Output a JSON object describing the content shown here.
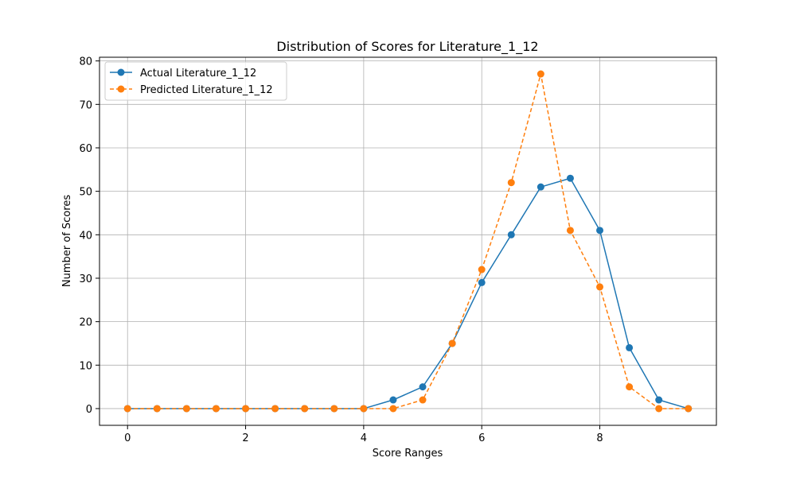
{
  "chart_data": {
    "type": "line",
    "title": "Distribution of Scores for Literature_1_12",
    "xlabel": "Score Ranges",
    "ylabel": "Number of Scores",
    "xlim": [
      -0.475,
      9.975
    ],
    "ylim": [
      -3.85,
      80.85
    ],
    "xticks": [
      0,
      2,
      4,
      6,
      8
    ],
    "xtick_labels": [
      "0",
      "2",
      "4",
      "6",
      "8"
    ],
    "yticks": [
      0,
      10,
      20,
      30,
      40,
      50,
      60,
      70,
      80
    ],
    "ytick_labels": [
      "0",
      "10",
      "20",
      "30",
      "40",
      "50",
      "60",
      "70",
      "80"
    ],
    "grid": true,
    "legend_position": "top-left",
    "x": [
      0,
      0.5,
      1,
      1.5,
      2,
      2.5,
      3,
      3.5,
      4,
      4.5,
      5,
      5.5,
      6,
      6.5,
      7,
      7.5,
      8,
      8.5,
      9,
      9.5
    ],
    "series": [
      {
        "name": "Actual Literature_1_12",
        "color": "#1f77b4",
        "linestyle": "solid",
        "marker": "circle",
        "values": [
          0,
          0,
          0,
          0,
          0,
          0,
          0,
          0,
          0,
          2,
          5,
          15,
          29,
          40,
          51,
          53,
          41,
          14,
          2,
          0
        ]
      },
      {
        "name": "Predicted Literature_1_12",
        "color": "#ff7f0e",
        "linestyle": "dashed",
        "marker": "circle",
        "values": [
          0,
          0,
          0,
          0,
          0,
          0,
          0,
          0,
          0,
          0,
          2,
          15,
          32,
          52,
          77,
          41,
          28,
          5,
          0,
          0
        ]
      }
    ]
  }
}
